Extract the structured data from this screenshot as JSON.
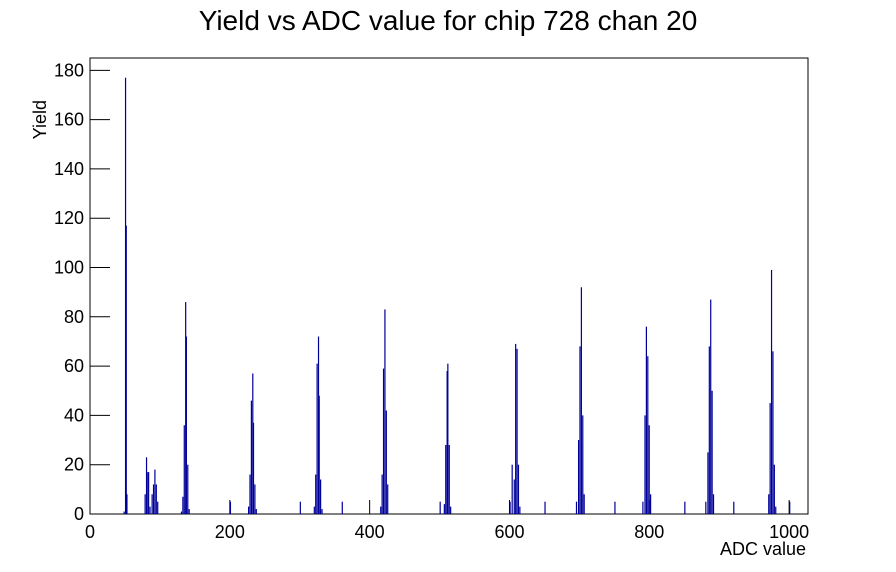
{
  "chart_data": {
    "type": "histogram",
    "title": "Yield vs ADC value for chip 728 chan 20",
    "x_label": "ADC value",
    "y_label": "Yield",
    "color": "#000099",
    "xlim": [
      0,
      1027
    ],
    "ylim": [
      0,
      185
    ],
    "xticks": [
      0,
      200,
      400,
      600,
      800,
      1000
    ],
    "yticks": [
      0,
      20,
      40,
      60,
      80,
      100,
      120,
      140,
      160,
      180
    ],
    "bin_width": 1,
    "x": [
      48,
      50,
      51,
      52,
      78,
      80,
      81,
      83,
      85,
      88,
      90,
      92,
      94,
      96,
      130,
      132,
      134,
      136,
      137,
      139,
      141,
      200,
      226,
      228,
      230,
      232,
      233,
      235,
      237,
      300,
      320,
      322,
      324,
      326,
      327,
      329,
      331,
      360,
      415,
      417,
      419,
      421,
      423,
      425,
      500,
      506,
      508,
      510,
      511,
      513,
      515,
      600,
      603,
      606,
      608,
      610,
      612,
      614,
      650,
      695,
      698,
      700,
      702,
      704,
      706,
      750,
      790,
      793,
      795,
      797,
      799,
      801,
      850,
      880,
      883,
      885,
      887,
      889,
      891,
      920,
      970,
      972,
      974,
      976,
      978,
      980,
      1000
    ],
    "values": [
      1,
      177,
      117,
      8,
      8,
      23,
      17,
      17,
      3,
      8,
      12,
      18,
      12,
      5,
      1,
      7,
      36,
      86,
      72,
      20,
      2,
      5,
      3,
      16,
      46,
      57,
      37,
      12,
      2,
      5,
      3,
      16,
      61,
      72,
      48,
      14,
      2,
      5,
      3,
      16,
      59,
      83,
      42,
      12,
      5,
      4,
      28,
      58,
      61,
      28,
      3,
      5,
      20,
      14,
      69,
      67,
      20,
      3,
      5,
      5,
      30,
      68,
      92,
      40,
      8,
      5,
      5,
      40,
      76,
      64,
      36,
      8,
      5,
      5,
      25,
      68,
      87,
      50,
      8,
      5,
      8,
      45,
      99,
      66,
      20,
      3,
      5
    ]
  }
}
